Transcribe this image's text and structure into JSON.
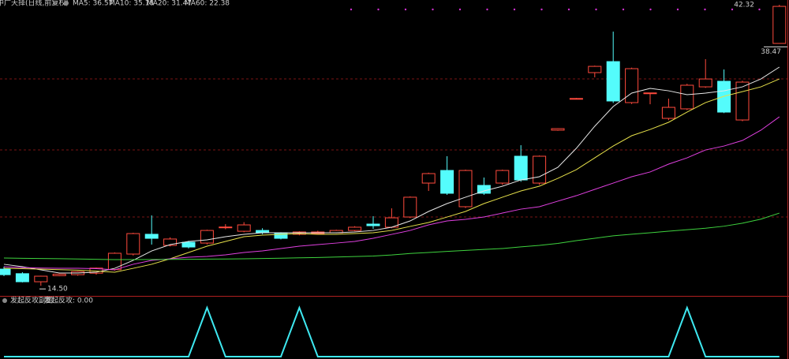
{
  "chart_data": [
    {
      "type": "candlestick",
      "title": "中广天择(日线,前复权)",
      "open": [
        16.15,
        15.7,
        14.9,
        15.5,
        15.6,
        15.75,
        16.1,
        17.64,
        19.6,
        18.5,
        18.81,
        18.73,
        20.3,
        19.9,
        19.98,
        19.67,
        19.6,
        19.67,
        19.75,
        19.98,
        20.61,
        20.3,
        21.31,
        24.67,
        25.92,
        22.33,
        24.44,
        24.67,
        27.33,
        24.67,
        29.91,
        33.03,
        35.61,
        36.7,
        32.64,
        33.58,
        31.08,
        32.02,
        34.2,
        34.75,
        30.92,
        null,
        38.5
      ],
      "close": [
        15.6,
        14.9,
        15.45,
        15.65,
        15.9,
        16.25,
        17.72,
        19.67,
        19.2,
        19.13,
        18.34,
        19.98,
        20.32,
        20.53,
        19.75,
        19.2,
        19.83,
        19.83,
        19.98,
        20.3,
        20.45,
        21.23,
        23.27,
        25.61,
        23.66,
        25.92,
        23.66,
        25.92,
        24.98,
        27.33,
        30.06,
        33.05,
        36.23,
        32.8,
        36.0,
        33.6,
        32.17,
        34.36,
        34.98,
        31.7,
        34.67,
        null,
        42.17
      ],
      "high": [
        16.4,
        15.85,
        15.5,
        15.7,
        15.95,
        16.3,
        17.8,
        19.75,
        21.47,
        19.3,
        18.95,
        20.05,
        20.6,
        20.8,
        20.2,
        19.8,
        19.9,
        19.95,
        20.05,
        20.4,
        21.39,
        22.17,
        23.35,
        25.7,
        27.33,
        26.0,
        25.22,
        26.0,
        28.42,
        27.4,
        30.1,
        33.1,
        36.3,
        39.67,
        36.1,
        33.6,
        33.03,
        34.5,
        36.94,
        35.92,
        34.8,
        null,
        42.32
      ],
      "low": [
        15.45,
        14.83,
        14.5,
        15.45,
        15.5,
        15.6,
        16.0,
        17.5,
        18.58,
        18.4,
        18.2,
        18.6,
        20.1,
        19.8,
        19.6,
        19.1,
        19.5,
        19.6,
        19.7,
        19.9,
        20.14,
        20.2,
        21.2,
        23.89,
        23.5,
        22.2,
        23.5,
        24.5,
        24.8,
        24.5,
        29.85,
        33.0,
        35.14,
        32.6,
        32.5,
        32.48,
        30.9,
        31.9,
        34.1,
        31.6,
        30.8,
        null,
        38.47
      ],
      "up_color": "#ff4a3d",
      "down_color": "#54fcfc",
      "ylim": [
        13.5,
        42.8
      ],
      "series": [
        {
          "name": "MA5: 36.57",
          "color": "#e8e8e8",
          "values": [
            16.63,
            16.39,
            16.08,
            15.77,
            15.77,
            15.84,
            16.23,
            17.02,
            17.95,
            18.58,
            18.89,
            19.05,
            19.36,
            19.59,
            19.75,
            19.75,
            19.75,
            19.75,
            19.75,
            19.83,
            19.98,
            20.3,
            20.92,
            21.86,
            22.64,
            23.27,
            23.89,
            24.36,
            24.98,
            25.3,
            26.23,
            28.11,
            30.3,
            32.25,
            33.58,
            34.05,
            33.81,
            33.42,
            33.58,
            33.81,
            34.2,
            34.98,
            36.16
          ]
        },
        {
          "name": "MA10: 35.18",
          "color": "#e6e04a",
          "values": [
            16.23,
            16.2,
            16.15,
            16.1,
            16.05,
            15.95,
            15.84,
            16.23,
            16.63,
            17.17,
            17.8,
            18.42,
            18.89,
            19.36,
            19.52,
            19.59,
            19.67,
            19.59,
            19.59,
            19.67,
            19.75,
            19.98,
            20.38,
            20.77,
            21.31,
            21.86,
            22.64,
            23.27,
            23.89,
            24.36,
            25.14,
            26.0,
            27.17,
            28.34,
            29.36,
            29.98,
            30.69,
            31.7,
            32.64,
            33.27,
            33.73,
            34.2,
            34.98
          ]
        },
        {
          "name": "MA20: 31.47",
          "color": "#e040e0",
          "values": [
            16.39,
            16.3,
            16.25,
            16.23,
            16.23,
            16.2,
            16.08,
            16.63,
            17.02,
            17.17,
            17.33,
            17.41,
            17.56,
            17.8,
            17.95,
            18.19,
            18.42,
            18.58,
            18.73,
            18.89,
            19.2,
            19.59,
            19.98,
            20.53,
            20.92,
            21.08,
            21.31,
            21.7,
            22.09,
            22.33,
            22.88,
            23.42,
            24.05,
            24.67,
            25.3,
            25.77,
            26.55,
            27.17,
            27.95,
            28.34,
            28.89,
            29.91,
            31.23
          ]
        },
        {
          "name": "MA60: 22.38",
          "color": "#3ed23e",
          "values": [
            17.25,
            17.22,
            17.2,
            17.18,
            17.15,
            17.12,
            17.09,
            17.09,
            17.1,
            17.11,
            17.12,
            17.14,
            17.15,
            17.17,
            17.2,
            17.23,
            17.27,
            17.3,
            17.35,
            17.4,
            17.45,
            17.55,
            17.7,
            17.8,
            17.9,
            18.0,
            18.1,
            18.19,
            18.35,
            18.5,
            18.7,
            18.97,
            19.2,
            19.45,
            19.6,
            19.75,
            19.91,
            20.05,
            20.2,
            20.4,
            20.7,
            21.1,
            21.7
          ]
        }
      ],
      "annotations": [
        42.32,
        38.47,
        {
          "value": 14.5,
          "label": "14.50"
        }
      ]
    },
    {
      "type": "line",
      "title": "发起反攻副图",
      "ylim": [
        0,
        1
      ],
      "series": [
        {
          "name": "发起反攻: 0.00",
          "color": "#3ee8f0",
          "values": [
            0,
            0,
            0,
            0,
            0,
            0,
            0,
            0,
            0,
            0,
            0,
            1,
            0,
            0,
            0,
            0,
            1,
            0,
            0,
            0,
            0,
            0,
            0,
            0,
            0,
            0,
            0,
            0,
            0,
            0,
            0,
            0,
            0,
            0,
            0,
            0,
            0,
            1,
            0,
            0,
            0,
            0,
            0
          ]
        }
      ]
    }
  ]
}
